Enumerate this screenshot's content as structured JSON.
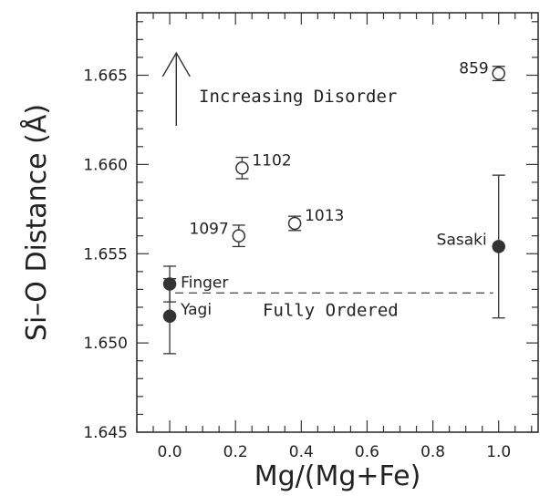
{
  "chart_data": {
    "type": "scatter",
    "title": "",
    "xlabel": "Mg/(Mg+Fe)",
    "ylabel": "Si–O Distance (Å)",
    "xlim": [
      -0.1,
      1.12
    ],
    "ylim": [
      1.645,
      1.6685
    ],
    "xticks": [
      "0.0",
      "0.2",
      "0.4",
      "0.6",
      "0.8",
      "1.0"
    ],
    "yticks": [
      "1.645",
      "1.650",
      "1.655",
      "1.660",
      "1.665"
    ],
    "grid": false,
    "legend": "none",
    "series": [
      {
        "marker": "open-circle",
        "points": [
          {
            "label": "859",
            "x": 1.0,
            "y": 1.6651,
            "err": 0.0004
          },
          {
            "label": "1102",
            "x": 0.22,
            "y": 1.6598,
            "err": 0.0006
          },
          {
            "label": "1013",
            "x": 0.38,
            "y": 1.6567,
            "err": 0.0004
          },
          {
            "label": "1097",
            "x": 0.21,
            "y": 1.656,
            "err": 0.0006
          }
        ]
      },
      {
        "marker": "filled-circle",
        "points": [
          {
            "label": "Finger",
            "x": 0.0,
            "y": 1.6533,
            "err": 0.001
          },
          {
            "label": "Yagi",
            "x": 0.0,
            "y": 1.6515,
            "err": 0.0021
          },
          {
            "label": "Sasaki",
            "x": 1.0,
            "y": 1.6554,
            "err": 0.004
          }
        ]
      }
    ],
    "reference_line": {
      "y": 1.6528,
      "x_range": [
        0.0,
        1.0
      ],
      "label": "Fully Ordered",
      "style": "dashed"
    },
    "annotations": [
      {
        "text": "Increasing Disorder",
        "arrow": "up"
      }
    ]
  }
}
